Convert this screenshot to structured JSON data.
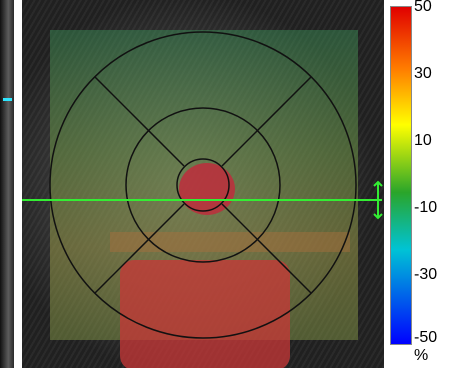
{
  "colorbar": {
    "ticks": [
      "50",
      "30",
      "10",
      "-10",
      "-30",
      "-50"
    ],
    "unit": "%",
    "colors": [
      "#e00000",
      "#ff7a00",
      "#ffff00",
      "#2aa52a",
      "#00c3d5",
      "#0000ff"
    ]
  },
  "overlay": {
    "scan_line_color": "#33ee33",
    "grid_color": "#111111"
  }
}
